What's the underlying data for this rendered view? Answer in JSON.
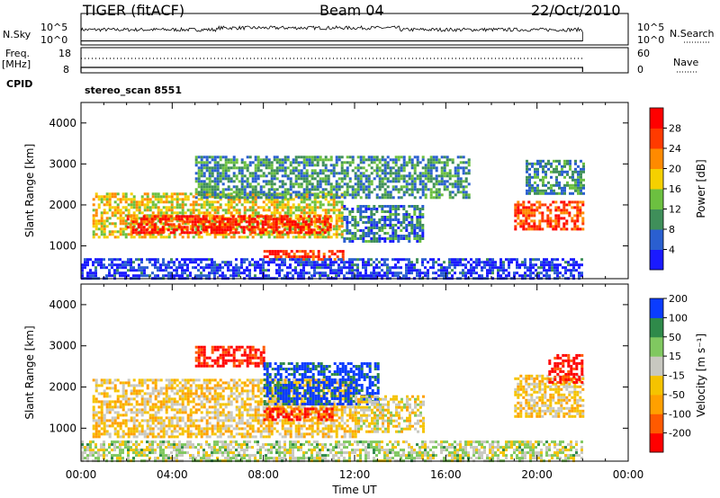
{
  "header": {
    "title": "TIGER (fitACF)",
    "beam": "Beam 04",
    "date": "22/Oct/2010"
  },
  "panels": {
    "nsky_label": "N.Sky",
    "nsky_ticks": [
      "10^5",
      "10^0"
    ],
    "nsearch_label": "N.Search",
    "nsearch_ticks": [
      "10^5",
      "10^0"
    ],
    "freq_label_line1": "Freq.",
    "freq_label_line2": "[MHz]",
    "freq_ticks": [
      "18",
      "8"
    ],
    "nave_label": "Nave",
    "nave_ticks": [
      "60",
      "0"
    ],
    "cpid_label": "CPID",
    "cpid_value": "stereo_scan 8551"
  },
  "colors": {
    "power_scale": [
      "#1a1aff",
      "#2a5fd0",
      "#3f8f5a",
      "#6cc040",
      "#f5d000",
      "#ff8a00",
      "#ff3a00",
      "#ff0000"
    ],
    "velocity_scale": [
      "#ff0000",
      "#ff5a00",
      "#ffa000",
      "#f5c300",
      "#c8c8c0",
      "#80c860",
      "#2f8a4a",
      "#0a3cff"
    ]
  },
  "chart_data": [
    {
      "type": "heatmap",
      "title": "",
      "ylabel": "Slant Range [km]",
      "xlabel": "",
      "ylim": [
        200,
        4500
      ],
      "yticks": [
        "1000",
        "2000",
        "3000",
        "4000"
      ],
      "xlim_hours": [
        0,
        24
      ],
      "colorbar": {
        "label": "Power [dB]",
        "ticks": [
          "4",
          "8",
          "12",
          "16",
          "20",
          "24",
          "28"
        ],
        "range": [
          0,
          32
        ]
      },
      "bands": [
        {
          "x0": 0.5,
          "x1": 11.5,
          "r0": 1200,
          "r1": 2300,
          "level": 0.55
        },
        {
          "x0": 2.0,
          "x1": 11.0,
          "r0": 1300,
          "r1": 1750,
          "level": 0.9
        },
        {
          "x0": 8.0,
          "x1": 11.5,
          "r0": 650,
          "r1": 900,
          "level": 0.85
        },
        {
          "x0": 5.0,
          "x1": 17.0,
          "r0": 2200,
          "r1": 3200,
          "level": 0.3
        },
        {
          "x0": 11.5,
          "x1": 15.0,
          "r0": 1100,
          "r1": 2000,
          "level": 0.25
        },
        {
          "x0": 19.0,
          "x1": 22.0,
          "r0": 1400,
          "r1": 2100,
          "level": 0.8
        },
        {
          "x0": 19.5,
          "x1": 22.0,
          "r0": 2300,
          "r1": 3100,
          "level": 0.3
        },
        {
          "x0": 0.0,
          "x1": 22.0,
          "r0": 200,
          "r1": 700,
          "level": 0.1
        }
      ]
    },
    {
      "type": "heatmap",
      "title": "",
      "ylabel": "Slant Range [km]",
      "xlabel": "Time UT",
      "ylim": [
        200,
        4500
      ],
      "yticks": [
        "1000",
        "2000",
        "3000",
        "4000"
      ],
      "xticks": [
        "00:00",
        "04:00",
        "08:00",
        "12:00",
        "16:00",
        "20:00",
        "00:00"
      ],
      "xlim_hours": [
        0,
        24
      ],
      "colorbar": {
        "label": "Velocity [m s⁻¹]",
        "ticks": [
          "-200",
          "-100",
          "-50",
          "-15",
          "15",
          "50",
          "100",
          "200"
        ],
        "range": [
          -250,
          250
        ]
      },
      "bands": [
        {
          "x0": 0.5,
          "x1": 12.0,
          "r0": 800,
          "r1": 2200,
          "level": 0.45
        },
        {
          "x0": 8.0,
          "x1": 11.0,
          "r0": 1200,
          "r1": 1500,
          "level": 0.1
        },
        {
          "x0": 5.0,
          "x1": 8.0,
          "r0": 2500,
          "r1": 3000,
          "level": 0.05
        },
        {
          "x0": 8.0,
          "x1": 13.0,
          "r0": 1600,
          "r1": 2600,
          "level": 0.95
        },
        {
          "x0": 12.0,
          "x1": 15.0,
          "r0": 900,
          "r1": 1800,
          "level": 0.5
        },
        {
          "x0": 19.0,
          "x1": 22.0,
          "r0": 1300,
          "r1": 2300,
          "level": 0.45
        },
        {
          "x0": 20.5,
          "x1": 22.0,
          "r0": 2100,
          "r1": 2800,
          "level": 0.05
        },
        {
          "x0": 0.0,
          "x1": 22.0,
          "r0": 200,
          "r1": 700,
          "level": 0.6
        }
      ]
    }
  ]
}
